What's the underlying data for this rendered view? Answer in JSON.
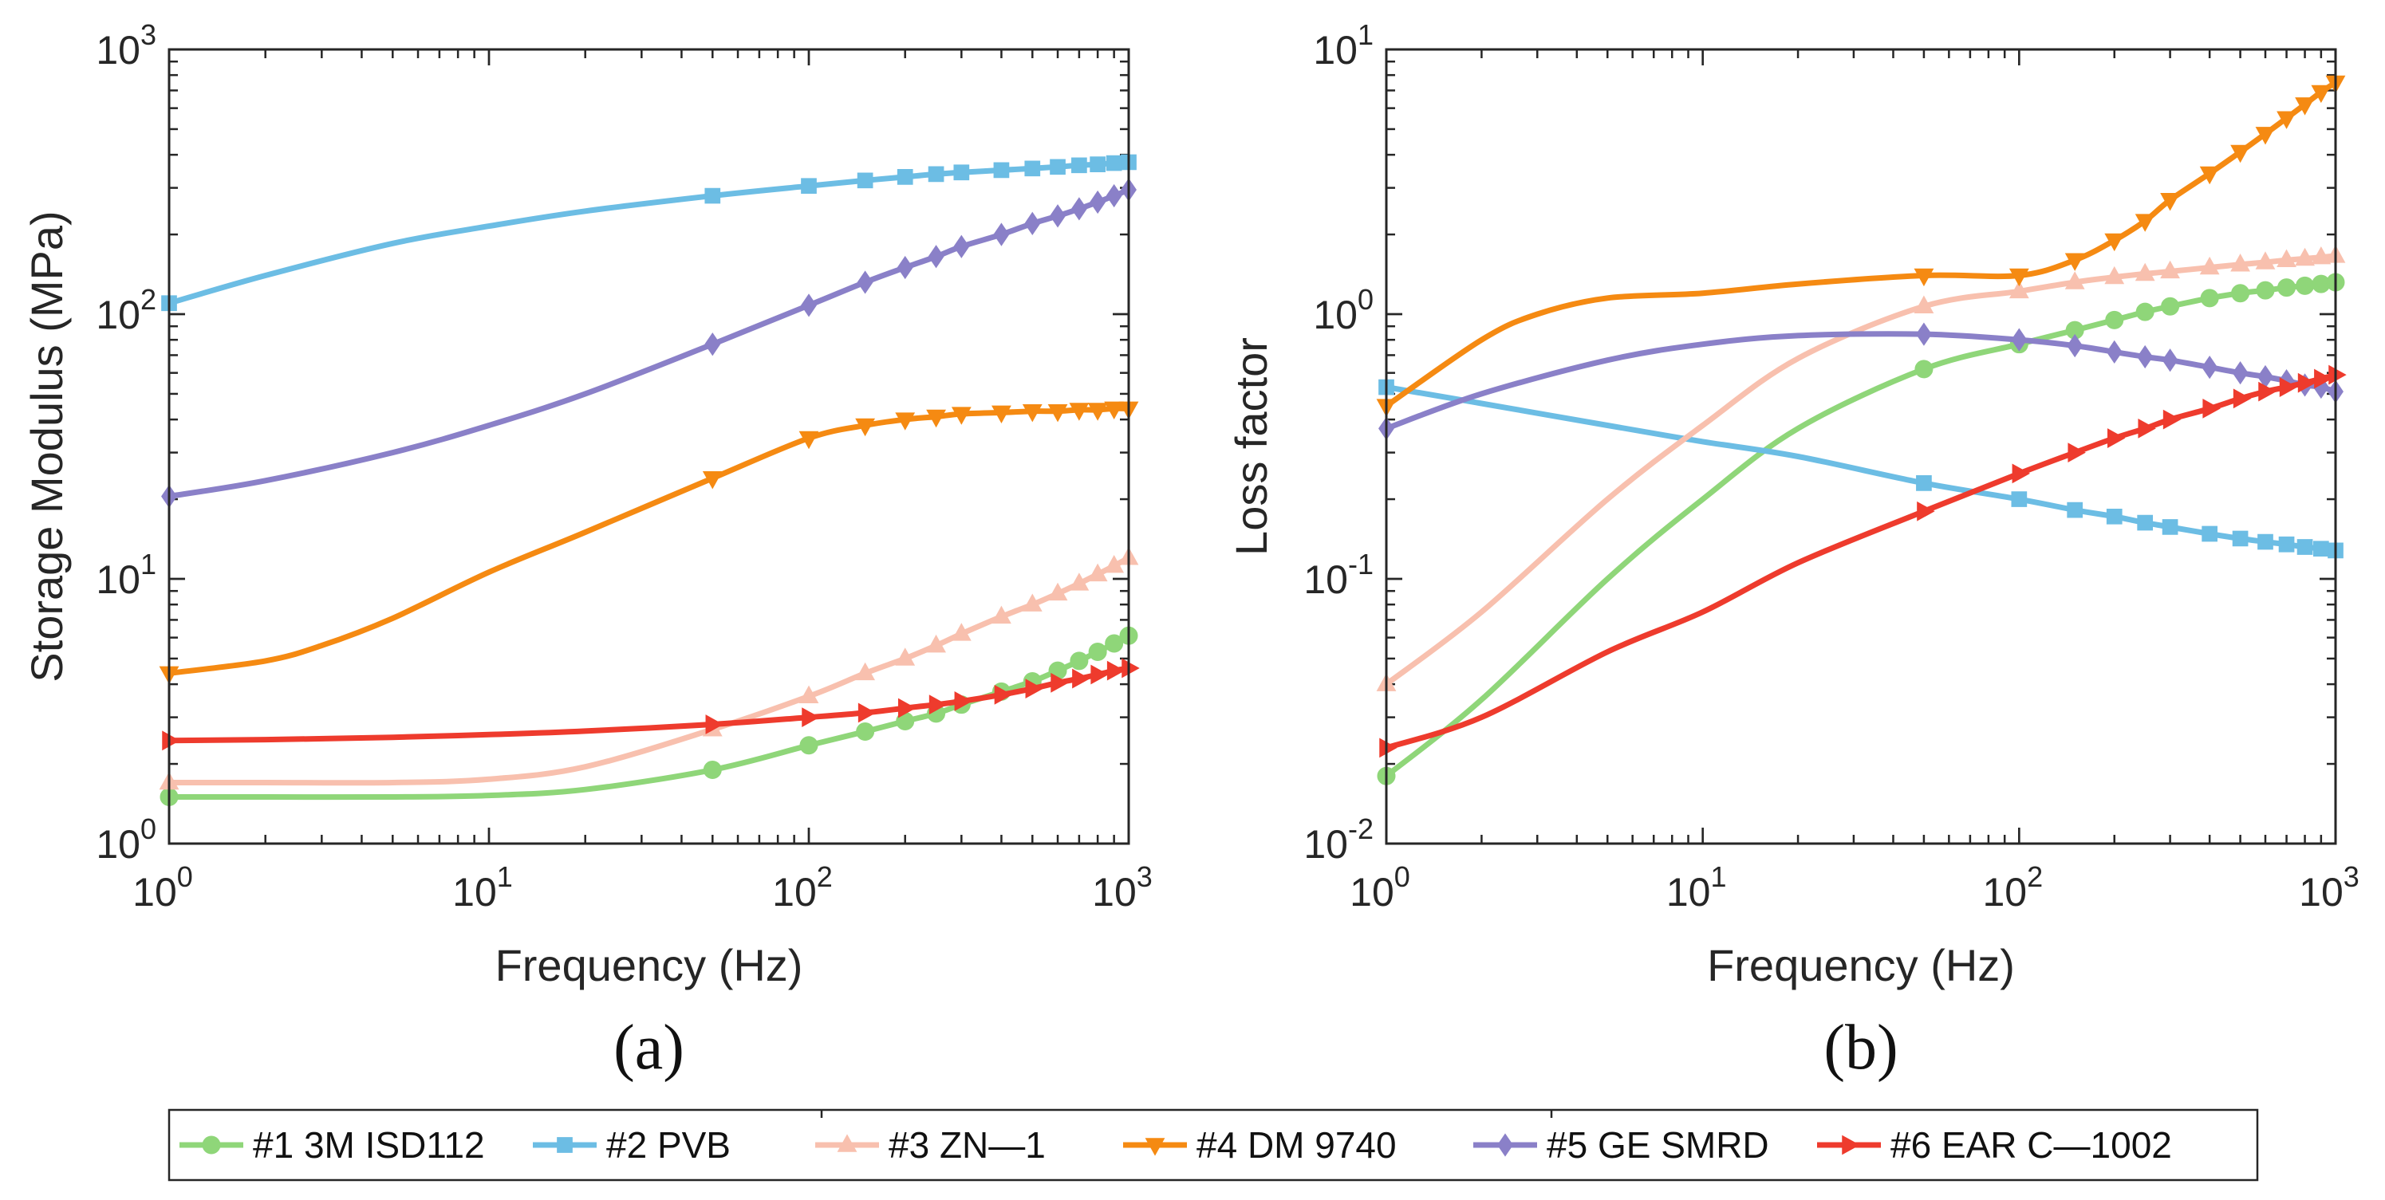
{
  "chart_data": [
    {
      "type": "line",
      "panel_label": "(a)",
      "xlabel": "Frequency (Hz)",
      "ylabel": "Storage Modulus (MPa)",
      "xscale": "log",
      "yscale": "log",
      "xlim": [
        1,
        1000
      ],
      "ylim": [
        1,
        1000
      ],
      "x_ticks": [
        {
          "base": "10",
          "exp": "0"
        },
        {
          "base": "10",
          "exp": "1"
        },
        {
          "base": "10",
          "exp": "2"
        },
        {
          "base": "10",
          "exp": "3"
        }
      ],
      "y_ticks": [
        {
          "base": "10",
          "exp": "0"
        },
        {
          "base": "10",
          "exp": "1"
        },
        {
          "base": "10",
          "exp": "2"
        },
        {
          "base": "10",
          "exp": "3"
        }
      ],
      "series": [
        {
          "name": "#1 3M ISD112",
          "x": [
            1,
            2,
            5,
            10,
            20,
            50,
            100,
            150,
            200,
            250,
            300,
            400,
            500,
            600,
            700,
            800,
            900,
            1000
          ],
          "values": [
            1.5,
            1.5,
            1.5,
            1.52,
            1.6,
            1.9,
            2.35,
            2.65,
            2.9,
            3.1,
            3.35,
            3.75,
            4.1,
            4.5,
            4.9,
            5.3,
            5.7,
            6.1
          ]
        },
        {
          "name": "#2 PVB",
          "x": [
            1,
            2,
            5,
            10,
            20,
            50,
            100,
            150,
            200,
            250,
            300,
            400,
            500,
            600,
            700,
            800,
            900,
            1000
          ],
          "values": [
            110,
            140,
            185,
            215,
            245,
            280,
            305,
            320,
            330,
            338,
            343,
            350,
            355,
            360,
            365,
            368,
            372,
            375
          ]
        },
        {
          "name": "#3 ZN—1",
          "x": [
            1,
            2,
            5,
            10,
            20,
            50,
            100,
            150,
            200,
            250,
            300,
            400,
            500,
            600,
            700,
            800,
            900,
            1000
          ],
          "values": [
            1.7,
            1.7,
            1.7,
            1.75,
            1.95,
            2.7,
            3.6,
            4.4,
            5.0,
            5.6,
            6.2,
            7.2,
            8.0,
            8.8,
            9.6,
            10.4,
            11.2,
            12.0
          ]
        },
        {
          "name": "#4 DM 9740",
          "x": [
            1,
            2,
            3,
            5,
            10,
            20,
            50,
            100,
            150,
            200,
            250,
            300,
            400,
            500,
            600,
            700,
            800,
            900,
            1000
          ],
          "values": [
            4.4,
            4.9,
            5.6,
            7.1,
            10.6,
            15,
            24,
            34,
            38,
            40,
            41,
            42,
            42.5,
            43,
            43,
            43.5,
            43.5,
            44,
            44
          ]
        },
        {
          "name": "#5 GE SMRD",
          "x": [
            1,
            2,
            5,
            10,
            20,
            50,
            100,
            150,
            200,
            250,
            300,
            400,
            500,
            600,
            700,
            800,
            900,
            1000
          ],
          "values": [
            20.5,
            23.5,
            30,
            38,
            50,
            77,
            108,
            132,
            150,
            165,
            180,
            200,
            220,
            235,
            250,
            265,
            280,
            295
          ]
        },
        {
          "name": "#6 EAR C—1002",
          "x": [
            1,
            2,
            5,
            10,
            20,
            50,
            100,
            150,
            200,
            250,
            300,
            400,
            500,
            600,
            700,
            800,
            900,
            1000
          ],
          "values": [
            2.45,
            2.47,
            2.52,
            2.58,
            2.66,
            2.82,
            3.0,
            3.12,
            3.25,
            3.35,
            3.45,
            3.65,
            3.85,
            4.05,
            4.2,
            4.35,
            4.5,
            4.6
          ]
        }
      ]
    },
    {
      "type": "line",
      "panel_label": "(b)",
      "xlabel": "Frequency (Hz)",
      "ylabel": "Loss factor",
      "xscale": "log",
      "yscale": "log",
      "xlim": [
        1,
        1000
      ],
      "ylim": [
        0.01,
        10
      ],
      "x_ticks": [
        {
          "base": "10",
          "exp": "0"
        },
        {
          "base": "10",
          "exp": "1"
        },
        {
          "base": "10",
          "exp": "2"
        },
        {
          "base": "10",
          "exp": "3"
        }
      ],
      "y_ticks": [
        {
          "base": "10",
          "exp": "-2"
        },
        {
          "base": "10",
          "exp": "-1"
        },
        {
          "base": "10",
          "exp": "0"
        },
        {
          "base": "10",
          "exp": "1"
        }
      ],
      "series": [
        {
          "name": "#1 3M ISD112",
          "x": [
            1,
            2,
            5,
            10,
            20,
            50,
            100,
            150,
            200,
            250,
            300,
            400,
            500,
            600,
            700,
            800,
            900,
            1000
          ],
          "values": [
            0.018,
            0.035,
            0.1,
            0.2,
            0.37,
            0.62,
            0.77,
            0.87,
            0.95,
            1.02,
            1.07,
            1.15,
            1.2,
            1.23,
            1.26,
            1.28,
            1.3,
            1.32
          ]
        },
        {
          "name": "#2 PVB",
          "x": [
            1,
            2,
            5,
            10,
            20,
            50,
            100,
            150,
            200,
            250,
            300,
            400,
            500,
            600,
            700,
            800,
            900,
            1000
          ],
          "values": [
            0.53,
            0.46,
            0.38,
            0.33,
            0.29,
            0.23,
            0.2,
            0.182,
            0.172,
            0.163,
            0.157,
            0.148,
            0.142,
            0.138,
            0.135,
            0.132,
            0.13,
            0.128
          ]
        },
        {
          "name": "#3 ZN—1",
          "x": [
            1,
            2,
            5,
            10,
            20,
            50,
            100,
            150,
            200,
            250,
            300,
            400,
            500,
            600,
            700,
            800,
            900,
            1000
          ],
          "values": [
            0.04,
            0.075,
            0.2,
            0.38,
            0.68,
            1.07,
            1.22,
            1.32,
            1.38,
            1.42,
            1.45,
            1.5,
            1.54,
            1.57,
            1.6,
            1.62,
            1.64,
            1.66
          ]
        },
        {
          "name": "#4 DM 9740",
          "x": [
            1,
            2,
            3,
            5,
            10,
            20,
            50,
            100,
            150,
            200,
            250,
            300,
            400,
            500,
            600,
            700,
            800,
            900,
            1000
          ],
          "values": [
            0.45,
            0.8,
            1.0,
            1.15,
            1.2,
            1.3,
            1.4,
            1.4,
            1.6,
            1.9,
            2.25,
            2.7,
            3.4,
            4.1,
            4.8,
            5.5,
            6.2,
            6.9,
            7.5
          ]
        },
        {
          "name": "#5 GE SMRD",
          "x": [
            1,
            2,
            5,
            10,
            20,
            50,
            100,
            150,
            200,
            250,
            300,
            400,
            500,
            600,
            700,
            800,
            900,
            1000
          ],
          "values": [
            0.37,
            0.5,
            0.67,
            0.77,
            0.83,
            0.84,
            0.8,
            0.76,
            0.72,
            0.69,
            0.67,
            0.63,
            0.6,
            0.58,
            0.56,
            0.54,
            0.53,
            0.51
          ]
        },
        {
          "name": "#6 EAR C—1002",
          "x": [
            1,
            2,
            5,
            10,
            20,
            50,
            100,
            150,
            200,
            250,
            300,
            400,
            500,
            600,
            700,
            800,
            900,
            1000
          ],
          "values": [
            0.023,
            0.03,
            0.053,
            0.075,
            0.115,
            0.18,
            0.25,
            0.3,
            0.34,
            0.37,
            0.4,
            0.44,
            0.48,
            0.51,
            0.53,
            0.55,
            0.57,
            0.59
          ]
        }
      ]
    }
  ],
  "legend": {
    "placement": "bottom",
    "entries": [
      {
        "label": "#1 3M ISD112",
        "color": "#8fd679",
        "marker": "circle"
      },
      {
        "label": "#2 PVB",
        "color": "#6cbde4",
        "marker": "square"
      },
      {
        "label": "#3 ZN—1",
        "color": "#f8c0ae",
        "marker": "triangle-up"
      },
      {
        "label": "#4 DM 9740",
        "color": "#f58a12",
        "marker": "triangle-down"
      },
      {
        "label": "#5 GE SMRD",
        "color": "#8a80c8",
        "marker": "diamond"
      },
      {
        "label": "#6 EAR C—1002",
        "color": "#ee3b2d",
        "marker": "triangle-right"
      }
    ]
  }
}
